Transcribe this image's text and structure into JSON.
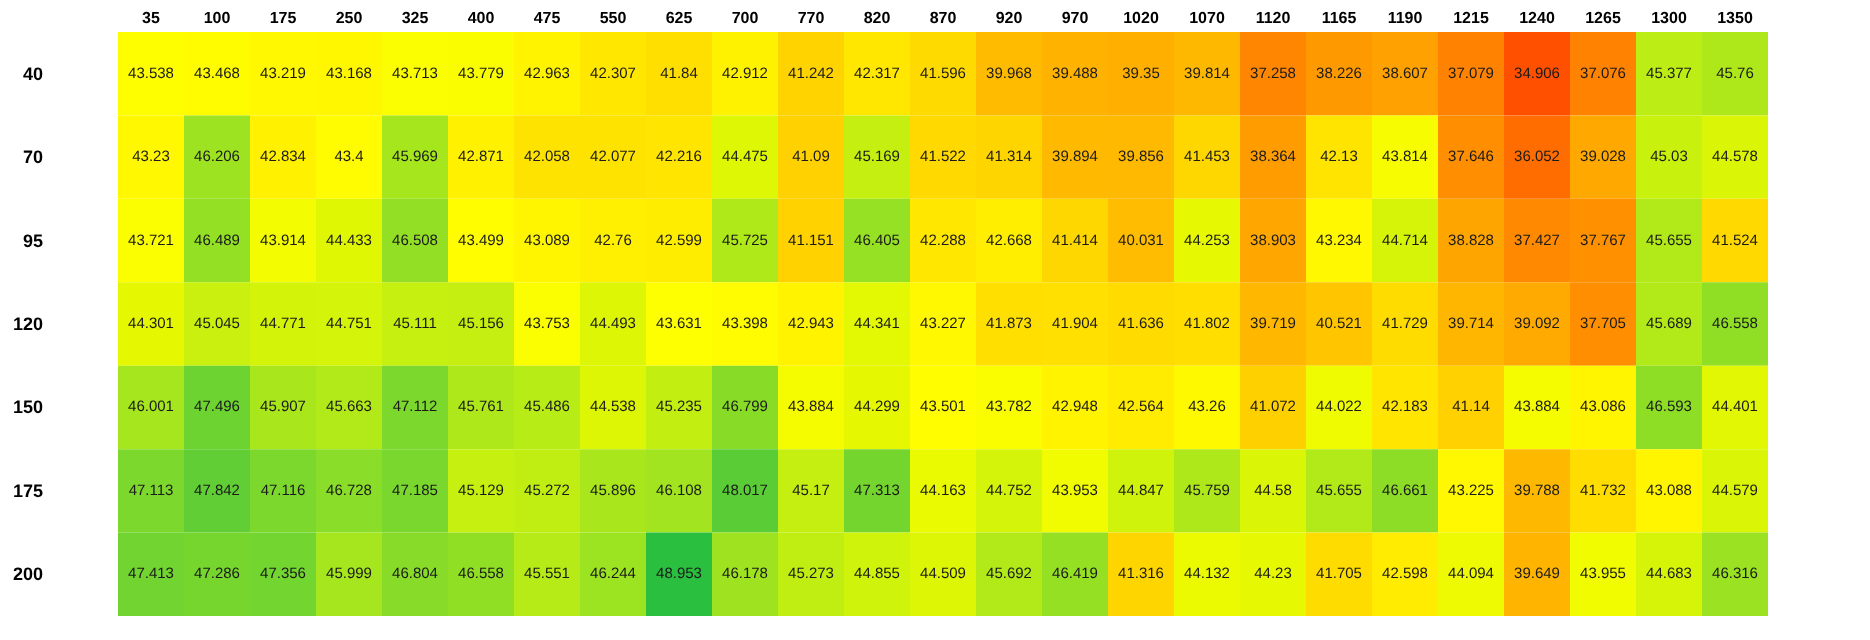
{
  "chart_data": {
    "type": "heatmap",
    "data_labels": true,
    "categories": [
      "35",
      "100",
      "175",
      "250",
      "325",
      "400",
      "475",
      "550",
      "625",
      "700",
      "770",
      "820",
      "870",
      "920",
      "970",
      "1020",
      "1070",
      "1120",
      "1165",
      "1190",
      "1215",
      "1240",
      "1265",
      "1300",
      "1350"
    ],
    "y_categories": [
      "40",
      "70",
      "95",
      "120",
      "150",
      "175",
      "200"
    ],
    "cells": [
      [
        43.538,
        43.468,
        43.219,
        43.168,
        43.713,
        43.779,
        42.963,
        42.307,
        41.84,
        42.912,
        41.242,
        42.317,
        41.596,
        39.968,
        39.488,
        39.35,
        39.814,
        37.258,
        38.226,
        38.607,
        37.079,
        34.906,
        37.076,
        45.377,
        45.76
      ],
      [
        43.23,
        46.206,
        42.834,
        43.4,
        45.969,
        42.871,
        42.058,
        42.077,
        42.216,
        44.475,
        41.09,
        45.169,
        41.522,
        41.314,
        39.894,
        39.856,
        41.453,
        38.364,
        42.13,
        43.814,
        37.646,
        36.052,
        39.028,
        45.03,
        44.578
      ],
      [
        43.721,
        46.489,
        43.914,
        44.433,
        46.508,
        43.499,
        43.089,
        42.76,
        42.599,
        45.725,
        41.151,
        46.405,
        42.288,
        42.668,
        41.414,
        40.031,
        44.253,
        38.903,
        43.234,
        44.714,
        38.828,
        37.427,
        37.767,
        45.655,
        41.524
      ],
      [
        44.301,
        45.045,
        44.771,
        44.751,
        45.111,
        45.156,
        43.753,
        44.493,
        43.631,
        43.398,
        42.943,
        44.341,
        43.227,
        41.873,
        41.904,
        41.636,
        41.802,
        39.719,
        40.521,
        41.729,
        39.714,
        39.092,
        37.705,
        45.689,
        46.558
      ],
      [
        46.001,
        47.496,
        45.907,
        45.663,
        47.112,
        45.761,
        45.486,
        44.538,
        45.235,
        46.799,
        43.884,
        44.299,
        43.501,
        43.782,
        42.948,
        42.564,
        43.26,
        41.072,
        44.022,
        42.183,
        41.14,
        43.884,
        43.086,
        46.593,
        44.401
      ],
      [
        47.113,
        47.842,
        47.116,
        46.728,
        47.185,
        45.129,
        45.272,
        45.896,
        46.108,
        48.017,
        45.17,
        47.313,
        44.163,
        44.752,
        43.953,
        44.847,
        45.759,
        44.58,
        45.655,
        46.661,
        43.225,
        39.788,
        41.732,
        43.088,
        44.579
      ],
      [
        47.413,
        47.286,
        47.356,
        45.999,
        46.804,
        46.558,
        45.551,
        46.244,
        48.953,
        46.178,
        45.273,
        44.855,
        44.509,
        45.692,
        46.419,
        41.316,
        44.132,
        44.23,
        41.705,
        42.598,
        44.094,
        39.649,
        43.955,
        44.683,
        46.316
      ]
    ]
  }
}
